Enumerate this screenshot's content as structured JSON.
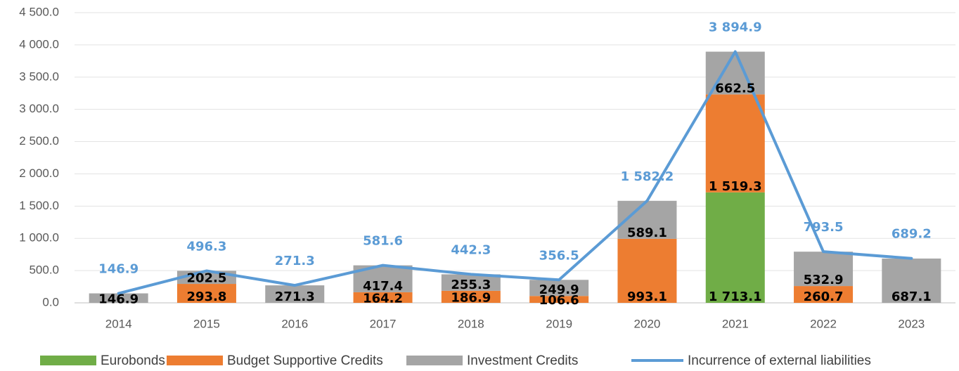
{
  "chart_data": {
    "type": "bar",
    "categories": [
      "2014",
      "2015",
      "2016",
      "2017",
      "2018",
      "2019",
      "2020",
      "2021",
      "2022",
      "2023"
    ],
    "series": [
      {
        "name": "Eurobonds",
        "type": "bar",
        "color": "#70ad47",
        "values": [
          null,
          null,
          null,
          null,
          null,
          null,
          null,
          1713.1,
          null,
          null
        ],
        "value_labels": [
          null,
          null,
          null,
          null,
          null,
          null,
          null,
          "1 713.1",
          null,
          null
        ]
      },
      {
        "name": "Budget Supportive Credits",
        "type": "bar",
        "color": "#ed7d31",
        "values": [
          null,
          293.8,
          null,
          164.2,
          186.9,
          106.6,
          993.1,
          1519.3,
          260.7,
          null
        ],
        "value_labels": [
          null,
          "293.8",
          null,
          "164.2",
          "186.9",
          "106.6",
          "993.1",
          "1 519.3",
          "260.7",
          null
        ]
      },
      {
        "name": "Investment Credits",
        "type": "bar",
        "color": "#a5a5a5",
        "values": [
          146.9,
          202.5,
          271.3,
          417.4,
          255.3,
          249.9,
          589.1,
          662.5,
          532.9,
          687.1
        ],
        "value_labels": [
          "146.9",
          "202.5",
          "271.3",
          "417.4",
          "255.3",
          "249.9",
          "589.1",
          "662.5",
          "532.9",
          "687.1"
        ]
      },
      {
        "name": "Incurrence of external liabilities",
        "type": "line",
        "color": "#5b9bd5",
        "values": [
          146.9,
          496.3,
          271.3,
          581.6,
          442.3,
          356.5,
          1582.2,
          3894.9,
          793.5,
          689.2
        ],
        "value_labels": [
          "146.9",
          "496.3",
          "271.3",
          "581.6",
          "442.3",
          "356.5",
          "1 582.2",
          "3 894.9",
          "793.5",
          "689.2"
        ]
      }
    ],
    "ylim": [
      0,
      4500
    ],
    "yticks": [
      {
        "value": 0,
        "label": "0.0"
      },
      {
        "value": 500,
        "label": "500.0"
      },
      {
        "value": 1000,
        "label": "1 000.0"
      },
      {
        "value": 1500,
        "label": "1 500.0"
      },
      {
        "value": 2000,
        "label": "2 000.0"
      },
      {
        "value": 2500,
        "label": "2 500.0"
      },
      {
        "value": 3000,
        "label": "3 000.0"
      },
      {
        "value": 3500,
        "label": "3 500.0"
      },
      {
        "value": 4000,
        "label": "4 000.0"
      },
      {
        "value": 4500,
        "label": "4 500.0"
      }
    ],
    "grid": true,
    "legend": "bottom"
  }
}
